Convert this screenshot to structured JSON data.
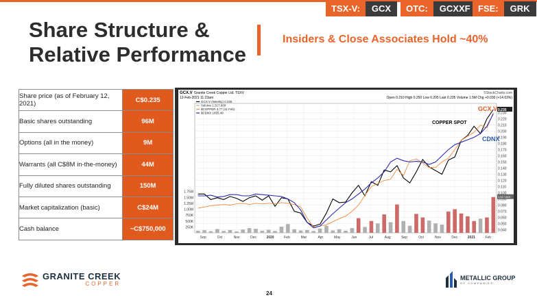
{
  "header": {
    "tickers": [
      {
        "exchange": "TSX-V:",
        "symbol": "GCX"
      },
      {
        "exchange": "OTC:",
        "symbol": "GCXXF"
      },
      {
        "exchange": "FSE:",
        "symbol": "GRK"
      }
    ],
    "title_line1": "Share Structure &",
    "title_line2": "Relative Performance",
    "subtitle": "Insiders & Close Associates Hold ~40%"
  },
  "table": {
    "rows": [
      {
        "label": "Share price (as of February 12, 2021)",
        "value": "C$0.235"
      },
      {
        "label": "Basic shares outstanding",
        "value": "96M"
      },
      {
        "label": "Options (all in the money)",
        "value": "9M"
      },
      {
        "label": "Warrants (all C$8M in-the-money)",
        "value": "44M"
      },
      {
        "label": "Fully diluted shares outstanding",
        "value": "150M"
      },
      {
        "label": "Market capitalization (basic)",
        "value": "C$24M"
      },
      {
        "label": "Cash balance",
        "value": "~C$750,000"
      }
    ]
  },
  "chart_data": {
    "type": "line",
    "symbol": "GCX.V",
    "company": "Granite Creek Copper Ltd.",
    "exchange": "TSXV",
    "source": "©StockCharts.com",
    "date_line": "12-Feb-2021 11:23am",
    "quote": {
      "open": "0.210",
      "high": "0.250",
      "low": "0.205",
      "last": "0.235",
      "volume": "1.5M",
      "chg": "+0.030 (+14.63%)"
    },
    "legend": [
      "GCX.V (Weekly) 0.235",
      "Volume 1,517,669",
      "$COPPER 3.77 (11 Feb)",
      "$CDNX 1655.49"
    ],
    "annotations": {
      "gcx": "GCX.V",
      "copper": "COPPER SPOT",
      "cdnx": "CDNX"
    },
    "colors": {
      "gcx": "#000000",
      "copper": "#f08a3c",
      "cdnx": "#2a2ab0",
      "volume": "#b0b0b0",
      "volume_up": "#cc6a6a",
      "gcx_label": "#e05a1e",
      "cdnx_label": "#2a5aa8"
    },
    "x_labels": [
      "Sep",
      "Oct",
      "Nov",
      "Dec",
      "2020",
      "Feb",
      "Mar",
      "Apr",
      "May",
      "Jun",
      "Jul",
      "Aug",
      "Sep",
      "Oct",
      "Nov",
      "Dec",
      "2021",
      "Feb"
    ],
    "y_ticks": [
      "0.230",
      "0.220",
      "0.210",
      "0.200",
      "0.190",
      "0.180",
      "0.170",
      "0.160",
      "0.150",
      "0.140",
      "0.130",
      "0.120",
      "0.110",
      "0.100",
      "0.090",
      "0.080",
      "0.070",
      "0.060",
      "0.050",
      "0.040"
    ],
    "y_last": "0.235",
    "y_volume_marker": "1,517,669",
    "volume_ticks": [
      "1.75M",
      "1.50M",
      "1.25M",
      "1.00M",
      "750K",
      "500K",
      "250K"
    ],
    "ylim": [
      0.035,
      0.245
    ],
    "volume_max": 2000000,
    "series": [
      {
        "name": "GCX.V",
        "values": [
          0.098,
          0.098,
          0.089,
          0.092,
          0.089,
          0.094,
          0.091,
          0.086,
          0.092,
          0.095,
          0.088,
          0.095,
          0.078,
          0.092,
          0.09,
          0.07,
          0.067,
          0.052,
          0.046,
          0.049,
          0.067,
          0.09,
          0.084,
          0.085,
          0.1,
          0.112,
          0.095,
          0.118,
          0.112,
          0.137,
          0.134,
          0.144,
          0.124,
          0.116,
          0.134,
          0.154,
          0.142,
          0.136,
          0.13,
          0.153,
          0.158,
          0.185,
          0.193,
          0.208,
          0.196,
          0.22,
          0.235
        ]
      },
      {
        "name": "COPPER SPOT",
        "values": [
          0.075,
          0.077,
          0.079,
          0.08,
          0.081,
          0.08,
          0.082,
          0.083,
          0.081,
          0.083,
          0.082,
          0.083,
          0.082,
          0.084,
          0.083,
          0.081,
          0.077,
          0.059,
          0.044,
          0.046,
          0.048,
          0.053,
          0.058,
          0.062,
          0.07,
          0.08,
          0.096,
          0.11,
          0.115,
          0.12,
          0.122,
          0.138,
          0.128,
          0.152,
          0.155,
          0.148,
          0.141,
          0.141,
          0.15,
          0.156,
          0.17,
          0.185,
          0.192,
          0.198,
          0.21,
          0.205,
          0.23
        ]
      },
      {
        "name": "CDNX",
        "values": [
          0.095,
          0.095,
          0.096,
          0.093,
          0.094,
          0.097,
          0.097,
          0.095,
          0.095,
          0.098,
          0.097,
          0.096,
          0.095,
          0.094,
          0.09,
          0.084,
          0.072,
          0.052,
          0.043,
          0.046,
          0.056,
          0.066,
          0.075,
          0.084,
          0.09,
          0.098,
          0.106,
          0.116,
          0.124,
          0.134,
          0.15,
          0.156,
          0.152,
          0.15,
          0.151,
          0.15,
          0.146,
          0.15,
          0.16,
          0.17,
          0.178,
          0.182,
          0.186,
          0.19,
          0.196,
          0.208,
          0.228
        ]
      }
    ],
    "volume": [
      90000,
      110000,
      70000,
      160000,
      80000,
      120000,
      60000,
      140000,
      200000,
      170000,
      90000,
      130000,
      80000,
      260000,
      370000,
      150000,
      100000,
      120000,
      80000,
      180000,
      300000,
      100000,
      150000,
      90000,
      200000,
      620000,
      250000,
      500000,
      400000,
      780000,
      450000,
      1200000,
      500000,
      300000,
      800000,
      650000,
      520000,
      400000,
      350000,
      900000,
      1000000,
      820000,
      700000,
      500000,
      600000,
      650000,
      1517669
    ],
    "title": "",
    "xlabel": "",
    "ylabel": "",
    "grid": true,
    "legend_placement": "top-left"
  },
  "footer": {
    "left_logo_line1": "GRANITE CREEK",
    "left_logo_line2": "COPPER",
    "page_number": "24",
    "right_logo_line1": "METALLIC GROUP",
    "right_logo_line2": "OF COMPANIES"
  }
}
